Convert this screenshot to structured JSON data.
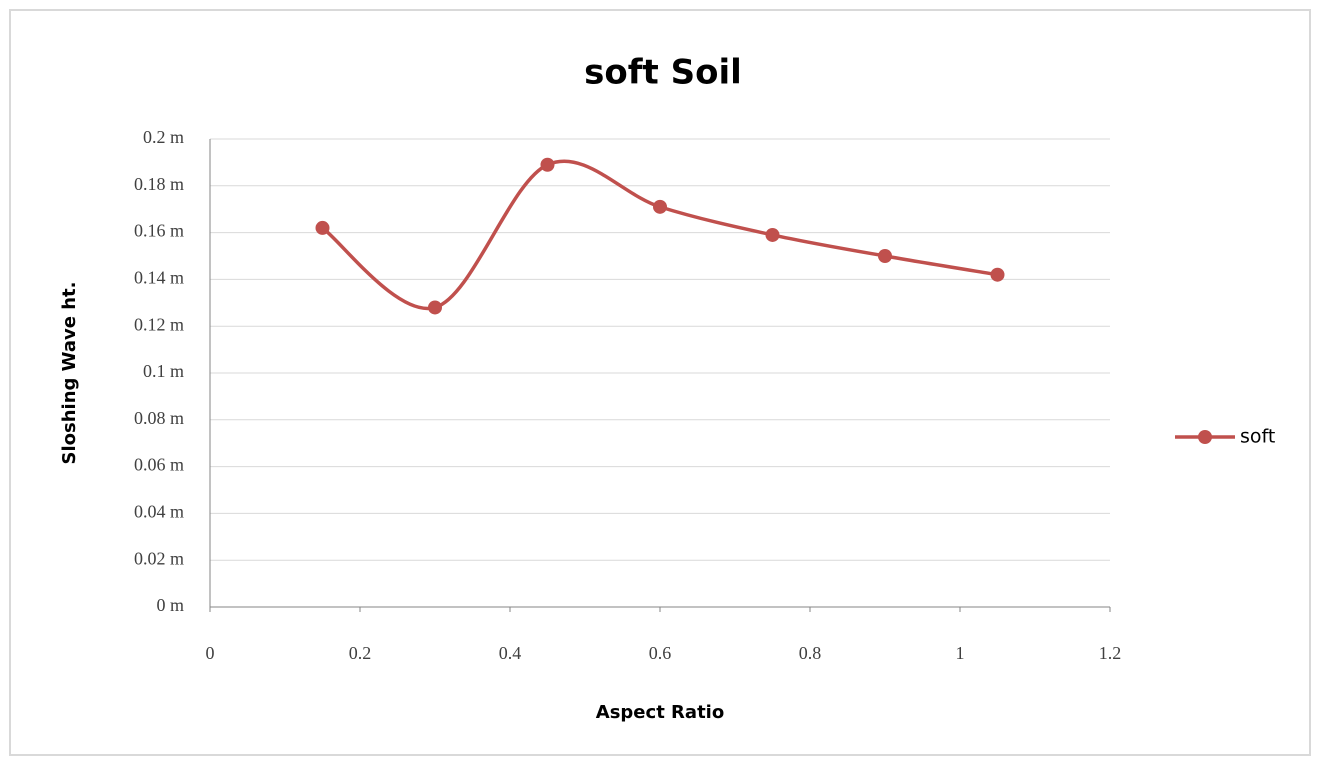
{
  "chart_data": {
    "type": "line",
    "title": "soft Soil",
    "xlabel": "Aspect Ratio",
    "ylabel": "Sloshing Wave ht.",
    "x": [
      0.15,
      0.3,
      0.45,
      0.6,
      0.75,
      0.9,
      1.05
    ],
    "series": [
      {
        "name": "soft",
        "color": "#c0504d",
        "values": [
          0.162,
          0.128,
          0.189,
          0.171,
          0.159,
          0.15,
          0.142
        ]
      }
    ],
    "xlim": [
      0,
      1.2
    ],
    "xticks": [
      0,
      0.2,
      0.4,
      0.6,
      0.8,
      1,
      1.2
    ],
    "ylim": [
      0,
      0.2
    ],
    "yticks": [
      {
        "value": 0,
        "label": "0 m"
      },
      {
        "value": 0.02,
        "label": "0.02 m"
      },
      {
        "value": 0.04,
        "label": "0.04 m"
      },
      {
        "value": 0.06,
        "label": "0.06 m"
      },
      {
        "value": 0.08,
        "label": "0.08 m"
      },
      {
        "value": 0.1,
        "label": "0.1 m"
      },
      {
        "value": 0.12,
        "label": "0.12 m"
      },
      {
        "value": 0.14,
        "label": "0.14 m"
      },
      {
        "value": 0.16,
        "label": "0.16 m"
      },
      {
        "value": 0.18,
        "label": "0.18 m"
      },
      {
        "value": 0.2,
        "label": "0.2 m"
      }
    ],
    "grid": true,
    "legend": "right",
    "smooth": true
  }
}
